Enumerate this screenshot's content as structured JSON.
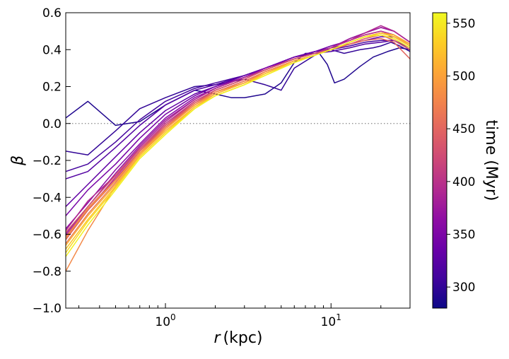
{
  "chart_data": {
    "type": "line",
    "xscale": "log",
    "xlim": [
      0.25,
      30
    ],
    "ylim": [
      -1.0,
      0.6
    ],
    "xlabel_italic": "r",
    "xlabel_unit": "(kpc)",
    "ylabel": "β",
    "x_major_ticks": [
      {
        "value": 1,
        "base": "10",
        "exp": "0"
      },
      {
        "value": 10,
        "base": "10",
        "exp": "1"
      }
    ],
    "x_minor_ticks": [
      0.3,
      0.4,
      0.5,
      0.6,
      0.7,
      0.8,
      0.9,
      2,
      3,
      4,
      5,
      6,
      7,
      8,
      9,
      20,
      30
    ],
    "y_ticks": [
      {
        "value": -1.0,
        "label": "−1.0"
      },
      {
        "value": -0.8,
        "label": "−0.8"
      },
      {
        "value": -0.6,
        "label": "−0.6"
      },
      {
        "value": -0.4,
        "label": "−0.4"
      },
      {
        "value": -0.2,
        "label": "−0.2"
      },
      {
        "value": 0.0,
        "label": "0.0"
      },
      {
        "value": 0.2,
        "label": "0.2"
      },
      {
        "value": 0.4,
        "label": "0.4"
      },
      {
        "value": 0.6,
        "label": "0.6"
      }
    ],
    "reference_line": {
      "y": 0.0,
      "style": "dotted",
      "color": "#888888"
    },
    "colorbar": {
      "label": "time (Myr)",
      "colormap": "plasma",
      "range": [
        280,
        560
      ],
      "ticks": [
        300,
        350,
        400,
        450,
        500,
        550
      ]
    },
    "series": [
      {
        "name": "t=290",
        "x": [
          0.25,
          0.34,
          0.5,
          0.7,
          1.0,
          1.5,
          2,
          2.5,
          3,
          4,
          5,
          6,
          7,
          8.5,
          9.5,
          10.5,
          12,
          15,
          18,
          22,
          26,
          30
        ],
        "y": [
          0.03,
          0.12,
          -0.01,
          0.01,
          0.1,
          0.18,
          0.16,
          0.14,
          0.14,
          0.16,
          0.22,
          0.33,
          0.38,
          0.38,
          0.32,
          0.22,
          0.24,
          0.31,
          0.36,
          0.39,
          0.41,
          0.4
        ]
      },
      {
        "name": "t=300",
        "x": [
          0.25,
          0.34,
          0.5,
          0.7,
          1.0,
          1.5,
          2,
          3,
          4,
          5,
          6,
          8,
          10,
          12,
          15,
          18,
          20,
          23,
          26,
          30
        ],
        "y": [
          -0.15,
          -0.17,
          -0.04,
          0.08,
          0.14,
          0.2,
          0.21,
          0.24,
          0.21,
          0.18,
          0.3,
          0.37,
          0.4,
          0.38,
          0.4,
          0.41,
          0.42,
          0.44,
          0.42,
          0.39
        ]
      },
      {
        "name": "t=310",
        "x": [
          0.25,
          0.34,
          0.5,
          0.7,
          1.0,
          1.5,
          2,
          3,
          4,
          6,
          8,
          10,
          13,
          16,
          20,
          24,
          30
        ],
        "y": [
          -0.26,
          -0.22,
          -0.1,
          0.02,
          0.12,
          0.19,
          0.22,
          0.26,
          0.3,
          0.36,
          0.39,
          0.4,
          0.42,
          0.44,
          0.45,
          0.45,
          0.4
        ]
      },
      {
        "name": "t=320",
        "x": [
          0.25,
          0.34,
          0.5,
          0.7,
          1.0,
          1.5,
          2,
          3,
          4,
          6,
          8,
          10,
          13,
          16,
          20,
          24,
          30
        ],
        "y": [
          -0.3,
          -0.26,
          -0.13,
          -0.01,
          0.1,
          0.18,
          0.21,
          0.26,
          0.3,
          0.36,
          0.38,
          0.39,
          0.41,
          0.43,
          0.44,
          0.45,
          0.41
        ]
      },
      {
        "name": "t=330",
        "x": [
          0.25,
          0.34,
          0.5,
          0.7,
          1.0,
          1.5,
          2,
          3,
          4,
          6,
          8,
          10,
          13,
          16,
          20,
          24,
          30
        ],
        "y": [
          -0.45,
          -0.33,
          -0.18,
          -0.05,
          0.07,
          0.16,
          0.2,
          0.26,
          0.3,
          0.36,
          0.39,
          0.41,
          0.43,
          0.45,
          0.47,
          0.47,
          0.42
        ]
      },
      {
        "name": "t=345",
        "x": [
          0.25,
          0.34,
          0.5,
          0.7,
          1.0,
          1.5,
          2,
          3,
          4,
          6,
          8,
          10,
          13,
          16,
          20,
          24,
          30
        ],
        "y": [
          -0.5,
          -0.36,
          -0.22,
          -0.08,
          0.05,
          0.15,
          0.2,
          0.25,
          0.3,
          0.36,
          0.39,
          0.42,
          0.45,
          0.48,
          0.5,
          0.48,
          0.43
        ]
      },
      {
        "name": "t=360",
        "x": [
          0.25,
          0.34,
          0.5,
          0.7,
          1.0,
          1.5,
          2,
          3,
          4,
          6,
          8,
          10,
          13,
          16,
          20,
          24,
          30
        ],
        "y": [
          -0.57,
          -0.43,
          -0.25,
          -0.11,
          0.03,
          0.14,
          0.19,
          0.25,
          0.3,
          0.35,
          0.38,
          0.41,
          0.46,
          0.49,
          0.52,
          0.5,
          0.44
        ]
      },
      {
        "name": "t=375",
        "x": [
          0.25,
          0.34,
          0.5,
          0.7,
          1.0,
          1.5,
          2,
          3,
          4,
          6,
          8,
          10,
          13,
          16,
          20,
          24,
          30
        ],
        "y": [
          -0.6,
          -0.45,
          -0.27,
          -0.12,
          0.02,
          0.13,
          0.19,
          0.25,
          0.29,
          0.35,
          0.38,
          0.41,
          0.46,
          0.49,
          0.52,
          0.5,
          0.44
        ]
      },
      {
        "name": "t=390",
        "x": [
          0.25,
          0.34,
          0.5,
          0.7,
          1.0,
          1.5,
          2,
          3,
          4,
          6,
          8,
          10,
          13,
          16,
          20,
          24,
          30
        ],
        "y": [
          -0.58,
          -0.42,
          -0.28,
          -0.13,
          0.01,
          0.13,
          0.19,
          0.25,
          0.29,
          0.35,
          0.38,
          0.41,
          0.45,
          0.49,
          0.53,
          0.5,
          0.44
        ]
      },
      {
        "name": "t=405",
        "x": [
          0.25,
          0.34,
          0.5,
          0.7,
          1.0,
          1.5,
          2,
          3,
          4,
          6,
          8,
          10,
          13,
          16,
          20,
          24,
          30
        ],
        "y": [
          -0.62,
          -0.47,
          -0.29,
          -0.14,
          0.0,
          0.12,
          0.18,
          0.24,
          0.29,
          0.35,
          0.38,
          0.41,
          0.45,
          0.48,
          0.5,
          0.48,
          0.43
        ]
      },
      {
        "name": "t=420",
        "x": [
          0.25,
          0.34,
          0.5,
          0.7,
          1.0,
          1.5,
          2,
          3,
          4,
          6,
          8,
          10,
          13,
          16,
          20,
          24,
          30
        ],
        "y": [
          -0.61,
          -0.46,
          -0.3,
          -0.15,
          -0.01,
          0.12,
          0.18,
          0.24,
          0.29,
          0.35,
          0.38,
          0.4,
          0.44,
          0.47,
          0.49,
          0.47,
          0.42
        ]
      },
      {
        "name": "t=435",
        "x": [
          0.25,
          0.34,
          0.5,
          0.7,
          1.0,
          1.5,
          2,
          3,
          4,
          6,
          8,
          10,
          13,
          16,
          20,
          24,
          30
        ],
        "y": [
          -0.59,
          -0.45,
          -0.28,
          -0.14,
          -0.01,
          0.11,
          0.18,
          0.24,
          0.29,
          0.35,
          0.38,
          0.4,
          0.43,
          0.46,
          0.48,
          0.45,
          0.4
        ]
      },
      {
        "name": "t=450",
        "x": [
          0.25,
          0.34,
          0.5,
          0.7,
          1.0,
          1.5,
          2,
          3,
          4,
          6,
          8,
          10,
          13,
          16,
          20,
          24,
          30
        ],
        "y": [
          -0.63,
          -0.47,
          -0.31,
          -0.15,
          -0.02,
          0.11,
          0.17,
          0.23,
          0.28,
          0.34,
          0.37,
          0.4,
          0.43,
          0.45,
          0.46,
          0.44,
          0.35
        ]
      },
      {
        "name": "t=465",
        "x": [
          0.25,
          0.34,
          0.5,
          0.7,
          1.0,
          1.5,
          2,
          3,
          4,
          6,
          8,
          10,
          13,
          16,
          20,
          24,
          30
        ],
        "y": [
          -0.65,
          -0.49,
          -0.32,
          -0.16,
          -0.02,
          0.1,
          0.17,
          0.23,
          0.28,
          0.34,
          0.37,
          0.4,
          0.44,
          0.47,
          0.49,
          0.47,
          0.42
        ]
      },
      {
        "name": "t=480",
        "x": [
          0.25,
          0.34,
          0.5,
          0.7,
          1.0,
          1.5,
          2,
          3,
          4,
          6,
          8,
          10,
          13,
          16,
          20,
          24,
          30
        ],
        "y": [
          -0.8,
          -0.58,
          -0.34,
          -0.17,
          -0.03,
          0.1,
          0.17,
          0.22,
          0.28,
          0.34,
          0.37,
          0.4,
          0.44,
          0.47,
          0.49,
          0.48,
          0.43
        ]
      },
      {
        "name": "t=495",
        "x": [
          0.25,
          0.34,
          0.5,
          0.7,
          1.0,
          1.5,
          2,
          3,
          4,
          6,
          8,
          10,
          13,
          16,
          20,
          24,
          30
        ],
        "y": [
          -0.62,
          -0.46,
          -0.31,
          -0.16,
          -0.03,
          0.1,
          0.16,
          0.22,
          0.27,
          0.34,
          0.37,
          0.4,
          0.44,
          0.47,
          0.49,
          0.48,
          0.42
        ]
      },
      {
        "name": "t=510",
        "x": [
          0.25,
          0.34,
          0.5,
          0.7,
          1.0,
          1.5,
          2,
          3,
          4,
          6,
          8,
          10,
          13,
          16,
          20,
          24,
          30
        ],
        "y": [
          -0.66,
          -0.5,
          -0.33,
          -0.17,
          -0.04,
          0.09,
          0.16,
          0.22,
          0.27,
          0.34,
          0.37,
          0.4,
          0.44,
          0.47,
          0.49,
          0.48,
          0.43
        ]
      },
      {
        "name": "t=525",
        "x": [
          0.25,
          0.34,
          0.5,
          0.7,
          1.0,
          1.5,
          2,
          3,
          4,
          6,
          8,
          10,
          13,
          16,
          20,
          24,
          30
        ],
        "y": [
          -0.68,
          -0.52,
          -0.34,
          -0.18,
          -0.05,
          0.09,
          0.15,
          0.21,
          0.27,
          0.33,
          0.37,
          0.4,
          0.44,
          0.47,
          0.49,
          0.47,
          0.42
        ]
      },
      {
        "name": "t=540",
        "x": [
          0.25,
          0.34,
          0.5,
          0.7,
          1.0,
          1.5,
          2,
          3,
          4,
          6,
          8,
          10,
          13,
          16,
          20,
          24,
          30
        ],
        "y": [
          -0.7,
          -0.53,
          -0.35,
          -0.18,
          -0.05,
          0.08,
          0.15,
          0.21,
          0.26,
          0.33,
          0.37,
          0.4,
          0.44,
          0.47,
          0.48,
          0.46,
          0.41
        ]
      },
      {
        "name": "t=555",
        "x": [
          0.25,
          0.34,
          0.5,
          0.7,
          1.0,
          1.5,
          2,
          3,
          4,
          6,
          8,
          10,
          13,
          16,
          20,
          24,
          30
        ],
        "y": [
          -0.72,
          -0.55,
          -0.36,
          -0.19,
          -0.06,
          0.08,
          0.15,
          0.21,
          0.26,
          0.33,
          0.37,
          0.4,
          0.44,
          0.47,
          0.48,
          0.46,
          0.41
        ]
      }
    ]
  }
}
